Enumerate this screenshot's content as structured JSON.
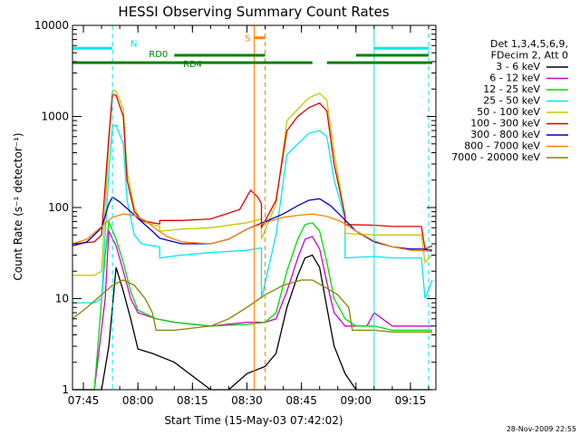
{
  "chart_data": {
    "type": "line",
    "title": "HESSI Observing Summary Count Rates",
    "xlabel": "Start Time (15-May-03 07:42:02)",
    "ylabel": "Count Rate (s⁻¹ detector⁻¹)",
    "xlim": [
      "07:42",
      "09:22"
    ],
    "ylim": [
      1,
      10000
    ],
    "yscale": "log",
    "x_ticks": [
      "07:45",
      "08:00",
      "08:15",
      "08:30",
      "08:45",
      "09:00",
      "09:15"
    ],
    "y_ticks": [
      "1",
      "10",
      "100",
      "1000",
      "10000"
    ],
    "legend_header": [
      "Det 1,3,4,5,6,9,",
      "FDecim 2, Att 0"
    ],
    "legend_position": "right",
    "series": [
      {
        "name": "3 - 6 keV",
        "color": "#000000",
        "x": [
          "07:42",
          "07:50",
          "07:52",
          "07:54",
          "07:56",
          "07:58",
          "08:00",
          "08:04",
          "08:10",
          "08:20",
          "08:25",
          "08:30",
          "08:35",
          "08:38",
          "08:41",
          "08:44",
          "08:46",
          "08:48",
          "08:50",
          "08:52",
          "08:54",
          "08:57",
          "09:00",
          "09:06",
          "09:12",
          "09:18",
          "09:21"
        ],
        "y": [
          1,
          1,
          3,
          22,
          12,
          6,
          2.8,
          2.5,
          2,
          1,
          1,
          1.5,
          1.8,
          2.5,
          8,
          18,
          28,
          30,
          22,
          8,
          3,
          1.5,
          1,
          1,
          1,
          1,
          1
        ]
      },
      {
        "name": "6 - 12 keV",
        "color": "#d000d0",
        "x": [
          "07:42",
          "07:48",
          "07:51",
          "07:52",
          "07:54",
          "07:56",
          "07:58",
          "08:00",
          "08:05",
          "08:10",
          "08:20",
          "08:30",
          "08:35",
          "08:38",
          "08:41",
          "08:44",
          "08:46",
          "08:48",
          "08:50",
          "08:52",
          "08:54",
          "08:57",
          "09:00",
          "09:03",
          "09:05",
          "09:10",
          "09:18",
          "09:21"
        ],
        "y": [
          1,
          1,
          10,
          55,
          38,
          20,
          10,
          7,
          6,
          5.5,
          5,
          5.5,
          5.5,
          6,
          12,
          28,
          45,
          48,
          35,
          15,
          7,
          5,
          5,
          5,
          7,
          5,
          5,
          5
        ]
      },
      {
        "name": "12 - 25 keV",
        "color": "#00dd00",
        "x": [
          "07:42",
          "07:48",
          "07:51",
          "07:52",
          "07:54",
          "07:56",
          "07:58",
          "08:00",
          "08:05",
          "08:10",
          "08:20",
          "08:30",
          "08:35",
          "08:38",
          "08:41",
          "08:44",
          "08:46",
          "08:48",
          "08:50",
          "08:52",
          "08:54",
          "08:57",
          "09:00",
          "09:05",
          "09:10",
          "09:18",
          "09:21"
        ],
        "y": [
          1,
          1,
          30,
          70,
          45,
          25,
          12,
          7.5,
          6,
          5.5,
          5,
          5.2,
          5.5,
          7,
          20,
          45,
          65,
          68,
          55,
          25,
          10,
          6,
          5,
          5,
          4.5,
          4.5,
          4.5
        ]
      },
      {
        "name": "25 - 50 keV",
        "color": "#00e8f0",
        "x": [
          "07:42",
          "07:48",
          "07:50",
          "07:52",
          "07:53",
          "07:54",
          "07:56",
          "07:57",
          "07:59",
          "08:01",
          "08:04",
          "08:06",
          "08:06",
          "08:12",
          "08:20",
          "08:30",
          "08:34",
          "08:34",
          "08:38",
          "08:41",
          "08:44",
          "08:47",
          "08:50",
          "08:52",
          "08:54",
          "08:57",
          "08:57",
          "09:05",
          "09:10",
          "09:18",
          "09:19",
          "09:21"
        ],
        "y": [
          9,
          9,
          10,
          250,
          780,
          800,
          500,
          120,
          50,
          40,
          38,
          37,
          28,
          30,
          32,
          34,
          36,
          10,
          50,
          380,
          500,
          650,
          700,
          600,
          200,
          75,
          28,
          29,
          28,
          28,
          10,
          16
        ]
      },
      {
        "name": "50 - 100 keV",
        "color": "#c8c800",
        "x": [
          "07:42",
          "07:48",
          "07:50",
          "07:52",
          "07:53",
          "07:54",
          "07:56",
          "07:57",
          "07:59",
          "08:01",
          "08:04",
          "08:06",
          "08:06",
          "08:12",
          "08:20",
          "08:30",
          "08:34",
          "08:34",
          "08:38",
          "08:41",
          "08:44",
          "08:47",
          "08:50",
          "08:52",
          "08:54",
          "08:57",
          "08:57",
          "09:05",
          "09:10",
          "09:18",
          "09:19",
          "09:21"
        ],
        "y": [
          18,
          18,
          20,
          500,
          1950,
          1900,
          1200,
          250,
          100,
          70,
          65,
          62,
          55,
          58,
          60,
          68,
          75,
          45,
          110,
          900,
          1200,
          1600,
          1800,
          1500,
          400,
          80,
          52,
          50,
          50,
          50,
          25,
          30
        ]
      },
      {
        "name": "100 - 300 keV",
        "color": "#e00000",
        "x": [
          "07:42",
          "07:48",
          "07:50",
          "07:52",
          "07:53",
          "07:54",
          "07:56",
          "07:57",
          "07:59",
          "08:01",
          "08:04",
          "08:06",
          "08:06",
          "08:12",
          "08:20",
          "08:28",
          "08:31",
          "08:33",
          "08:34",
          "08:34",
          "08:38",
          "08:41",
          "08:44",
          "08:47",
          "08:50",
          "08:52",
          "08:54",
          "08:57",
          "08:57",
          "09:05",
          "09:10",
          "09:18",
          "09:19",
          "09:21"
        ],
        "y": [
          40,
          42,
          50,
          600,
          1750,
          1700,
          1000,
          200,
          90,
          72,
          68,
          66,
          72,
          72,
          75,
          95,
          155,
          130,
          110,
          60,
          120,
          700,
          1000,
          1250,
          1400,
          1150,
          300,
          80,
          65,
          64,
          62,
          62,
          35,
          38
        ]
      },
      {
        "name": "300 - 800 keV",
        "color": "#0000cc",
        "x": [
          "07:42",
          "07:46",
          "07:50",
          "07:52",
          "07:53",
          "07:55",
          "07:58",
          "08:01",
          "08:04",
          "08:06",
          "08:12",
          "08:20",
          "08:25",
          "08:30",
          "08:35",
          "08:40",
          "08:44",
          "08:47",
          "08:50",
          "08:53",
          "08:56",
          "09:00",
          "09:05",
          "09:10",
          "09:15",
          "09:18",
          "09:21"
        ],
        "y": [
          38,
          42,
          60,
          110,
          130,
          115,
          90,
          70,
          55,
          46,
          40,
          40,
          45,
          58,
          70,
          85,
          105,
          120,
          125,
          105,
          80,
          55,
          42,
          37,
          35,
          35,
          34
        ]
      },
      {
        "name": "800 - 7000 keV",
        "color": "#ff8000",
        "x": [
          "07:42",
          "07:46",
          "07:50",
          "07:53",
          "07:56",
          "07:59",
          "08:02",
          "08:05",
          "08:08",
          "08:12",
          "08:20",
          "08:25",
          "08:30",
          "08:35",
          "08:40",
          "08:45",
          "08:48",
          "08:52",
          "08:56",
          "09:00",
          "09:05",
          "09:10",
          "09:15",
          "09:21"
        ],
        "y": [
          40,
          45,
          62,
          78,
          85,
          82,
          72,
          58,
          48,
          42,
          40,
          45,
          58,
          68,
          78,
          83,
          85,
          80,
          70,
          55,
          43,
          37,
          34,
          33
        ]
      },
      {
        "name": "7000 - 20000 keV",
        "color": "#8b8000",
        "x": [
          "07:42",
          "07:46",
          "07:50",
          "07:53",
          "07:56",
          "07:59",
          "08:02",
          "08:04",
          "08:05",
          "08:10",
          "08:20",
          "08:25",
          "08:30",
          "08:35",
          "08:40",
          "08:45",
          "08:48",
          "08:52",
          "08:55",
          "08:58",
          "08:59",
          "09:05",
          "09:10",
          "09:15",
          "09:21"
        ],
        "y": [
          6,
          8,
          11,
          14,
          16,
          14,
          10,
          7,
          4.5,
          4.5,
          5,
          6,
          8,
          11,
          14,
          16,
          16,
          13,
          11,
          8,
          4.5,
          4.5,
          4.3,
          4.3,
          4.3
        ]
      }
    ],
    "vertical_lines": [
      {
        "x": "07:53",
        "color": "#00e8f0",
        "style": "dashed"
      },
      {
        "x": "08:32",
        "color": "#ff8000",
        "style": "solid"
      },
      {
        "x": "08:35",
        "color": "#ff8000",
        "style": "dashed"
      },
      {
        "x": "09:05",
        "color": "#00e8f0",
        "style": "solid"
      },
      {
        "x": "09:20",
        "color": "#00e8f0",
        "style": "dashed"
      }
    ],
    "flag_bars": [
      {
        "label": "N",
        "color": "#00e8f0",
        "level": 5600,
        "segments": [
          [
            "07:42",
            "07:53"
          ],
          [
            "09:05",
            "09:20"
          ]
        ]
      },
      {
        "label": "S",
        "color": "#ff8000",
        "level": 7300,
        "segments": [
          [
            "08:32",
            "08:35"
          ]
        ]
      },
      {
        "label": "RD0",
        "color": "#008000",
        "level": 4700,
        "segments": [
          [
            "08:10",
            "08:35"
          ],
          [
            "09:00",
            "09:20"
          ]
        ]
      },
      {
        "label": "RD4",
        "color": "#008000",
        "level": 3900,
        "segments": [
          [
            "07:42",
            "08:48"
          ],
          [
            "08:52",
            "09:21"
          ]
        ]
      }
    ],
    "grid": false
  },
  "timestamp": "28-Nov-2009 22:55"
}
